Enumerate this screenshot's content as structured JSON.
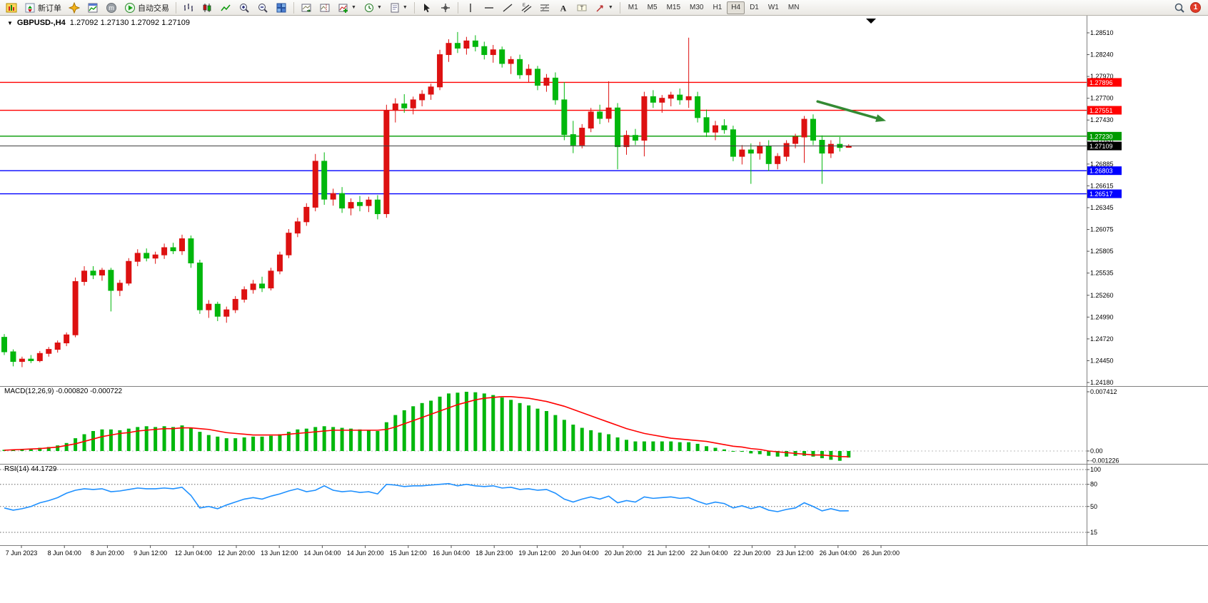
{
  "toolbar": {
    "new_order_label": "新订单",
    "autotrading_label": "自动交易",
    "timeframes": [
      "M1",
      "M5",
      "M15",
      "M30",
      "H1",
      "H4",
      "D1",
      "W1",
      "MN"
    ],
    "active_timeframe": "H4",
    "notification_badge": "1",
    "icon_names": [
      "app-chart",
      "new-order",
      "navigator",
      "data-window",
      "mql-community",
      "autotrading-play",
      "chart-bars",
      "chart-candles",
      "chart-line",
      "zoom-in",
      "zoom-out",
      "tile-windows",
      "auto-scroll",
      "chart-shift",
      "indicators",
      "periods",
      "templates",
      "cursor",
      "crosshair",
      "vertical-line",
      "horizontal-line",
      "trendline",
      "equidistant-channel",
      "fibonacci",
      "text",
      "text-label",
      "arrows",
      "search",
      "notification"
    ]
  },
  "chart": {
    "symbol_title": "GBPUSD-,H4",
    "ohlc_line": "1.27092 1.27130 1.27092 1.27109",
    "macd_label": "MACD(12,26,9) -0.000820 -0.000722",
    "rsi_label": "RSI(14) 44.1729"
  },
  "chart_data": {
    "type": "candlestick",
    "symbol": "GBPUSD-",
    "timeframe": "H4",
    "current_ohlc": {
      "open": 1.27092,
      "high": 1.2713,
      "low": 1.27092,
      "close": 1.27109
    },
    "colors": {
      "bull": "#dd1111",
      "bear": "#00b70c",
      "macd_hist": "#00b70c",
      "macd_signal": "#ff0000",
      "rsi_line": "#1e90ff",
      "panel_border": "#808080",
      "arrow": "#338a33",
      "current_price_line": "#404040"
    },
    "price_axis": {
      "labels": [
        "1.28510",
        "1.28240",
        "1.27970",
        "1.27700",
        "1.27430",
        "1.27160",
        "1.26885",
        "1.26615",
        "1.26345",
        "1.26075",
        "1.25805",
        "1.25535",
        "1.25260",
        "1.24990",
        "1.24720",
        "1.24450",
        "1.24180"
      ],
      "max": 1.2851,
      "min": 1.2418
    },
    "hlines": [
      {
        "price": 1.27896,
        "color": "#ff0000",
        "tag": "1.27896",
        "tag_bg": "#ff0000"
      },
      {
        "price": 1.27551,
        "color": "#ff0000",
        "tag": "1.27551",
        "tag_bg": "#ff0000"
      },
      {
        "price": 1.2723,
        "color": "#009a00",
        "tag": "1.27230",
        "tag_bg": "#009a00"
      },
      {
        "price": 1.26803,
        "color": "#0000ff",
        "tag": "1.26803",
        "tag_bg": "#0000ff"
      },
      {
        "price": 1.26517,
        "color": "#0000ff",
        "tag": "1.26517",
        "tag_bg": "#0000ff"
      }
    ],
    "current_price": {
      "price": 1.27109,
      "tag": "1.27109",
      "tag_bg": "#000000"
    },
    "annotation_arrow": {
      "from_index": 91.5,
      "from_price": 1.2766,
      "to_index": 99.2,
      "to_price": 1.2742
    },
    "candles": [
      [
        1.2474,
        1.2478,
        1.2452,
        1.2456
      ],
      [
        1.2456,
        1.2459,
        1.2438,
        1.2444
      ],
      [
        1.2444,
        1.245,
        1.2437,
        1.2447
      ],
      [
        1.2447,
        1.2452,
        1.2442,
        1.2445
      ],
      [
        1.2445,
        1.2457,
        1.2443,
        1.2454
      ],
      [
        1.2454,
        1.2462,
        1.245,
        1.2459
      ],
      [
        1.2459,
        1.247,
        1.2455,
        1.2467
      ],
      [
        1.2467,
        1.248,
        1.2463,
        1.2477
      ],
      [
        1.2477,
        1.2548,
        1.2474,
        1.2543
      ],
      [
        1.2543,
        1.2562,
        1.2538,
        1.2556
      ],
      [
        1.2556,
        1.2562,
        1.2546,
        1.2551
      ],
      [
        1.2551,
        1.256,
        1.2544,
        1.2557
      ],
      [
        1.2557,
        1.256,
        1.2506,
        1.2532
      ],
      [
        1.2532,
        1.2545,
        1.2525,
        1.2541
      ],
      [
        1.2541,
        1.2572,
        1.2538,
        1.2568
      ],
      [
        1.2568,
        1.2583,
        1.2562,
        1.2578
      ],
      [
        1.2578,
        1.2584,
        1.2568,
        1.2572
      ],
      [
        1.2572,
        1.258,
        1.2565,
        1.2576
      ],
      [
        1.2576,
        1.259,
        1.2571,
        1.2585
      ],
      [
        1.2585,
        1.2591,
        1.2577,
        1.2581
      ],
      [
        1.2581,
        1.2601,
        1.2576,
        1.2596
      ],
      [
        1.2596,
        1.26,
        1.256,
        1.2566
      ],
      [
        1.2566,
        1.257,
        1.2503,
        1.2508
      ],
      [
        1.2508,
        1.252,
        1.2498,
        1.2515
      ],
      [
        1.2515,
        1.2518,
        1.2494,
        1.25
      ],
      [
        1.25,
        1.2512,
        1.2492,
        1.2508
      ],
      [
        1.2508,
        1.2525,
        1.2504,
        1.2521
      ],
      [
        1.2521,
        1.2537,
        1.2517,
        1.2533
      ],
      [
        1.2533,
        1.2545,
        1.2528,
        1.254
      ],
      [
        1.254,
        1.2549,
        1.253,
        1.2535
      ],
      [
        1.2535,
        1.256,
        1.2532,
        1.2556
      ],
      [
        1.2556,
        1.258,
        1.2552,
        1.2576
      ],
      [
        1.2576,
        1.2608,
        1.2572,
        1.2603
      ],
      [
        1.2603,
        1.2622,
        1.2598,
        1.2617
      ],
      [
        1.2617,
        1.264,
        1.2612,
        1.2635
      ],
      [
        1.2635,
        1.2701,
        1.263,
        1.2692
      ],
      [
        1.2692,
        1.2703,
        1.2638,
        1.2645
      ],
      [
        1.2645,
        1.2658,
        1.2637,
        1.2652
      ],
      [
        1.2652,
        1.266,
        1.2628,
        1.2634
      ],
      [
        1.2634,
        1.2646,
        1.2625,
        1.2641
      ],
      [
        1.2641,
        1.2649,
        1.263,
        1.2637
      ],
      [
        1.2637,
        1.2648,
        1.2629,
        1.2644
      ],
      [
        1.2644,
        1.265,
        1.262,
        1.2627
      ],
      [
        1.2627,
        1.2762,
        1.2622,
        1.2755
      ],
      [
        1.2755,
        1.277,
        1.274,
        1.2763
      ],
      [
        1.2763,
        1.2775,
        1.2752,
        1.2758
      ],
      [
        1.2758,
        1.2772,
        1.275,
        1.2768
      ],
      [
        1.2768,
        1.278,
        1.276,
        1.2775
      ],
      [
        1.2775,
        1.2788,
        1.2768,
        1.2784
      ],
      [
        1.2784,
        1.283,
        1.278,
        1.2824
      ],
      [
        1.2824,
        1.2843,
        1.2815,
        1.2838
      ],
      [
        1.2838,
        1.2852,
        1.2826,
        1.2832
      ],
      [
        1.2832,
        1.2846,
        1.2824,
        1.2841
      ],
      [
        1.2841,
        1.2848,
        1.2828,
        1.2834
      ],
      [
        1.2834,
        1.284,
        1.2818,
        1.2824
      ],
      [
        1.2824,
        1.2836,
        1.2814,
        1.283
      ],
      [
        1.283,
        1.2834,
        1.2808,
        1.2813
      ],
      [
        1.2813,
        1.2822,
        1.28,
        1.2818
      ],
      [
        1.2818,
        1.2824,
        1.2794,
        1.2799
      ],
      [
        1.2799,
        1.2812,
        1.279,
        1.2806
      ],
      [
        1.2806,
        1.281,
        1.278,
        1.2786
      ],
      [
        1.2786,
        1.28,
        1.2778,
        1.2795
      ],
      [
        1.2795,
        1.2802,
        1.2762,
        1.2768
      ],
      [
        1.2768,
        1.279,
        1.2718,
        1.2725
      ],
      [
        1.2725,
        1.2742,
        1.2702,
        1.2712
      ],
      [
        1.2712,
        1.2738,
        1.2708,
        1.2733
      ],
      [
        1.2733,
        1.2758,
        1.2728,
        1.2753
      ],
      [
        1.2753,
        1.2762,
        1.2738,
        1.2745
      ],
      [
        1.2745,
        1.2791,
        1.274,
        1.2758
      ],
      [
        1.2758,
        1.2764,
        1.2682,
        1.271
      ],
      [
        1.271,
        1.273,
        1.27,
        1.2724
      ],
      [
        1.2724,
        1.2732,
        1.2712,
        1.2718
      ],
      [
        1.2718,
        1.2778,
        1.2698,
        1.2772
      ],
      [
        1.2772,
        1.278,
        1.2758,
        1.2765
      ],
      [
        1.2765,
        1.2774,
        1.2752,
        1.277
      ],
      [
        1.277,
        1.2778,
        1.276,
        1.2774
      ],
      [
        1.2774,
        1.2782,
        1.2762,
        1.2768
      ],
      [
        1.2768,
        1.2845,
        1.2758,
        1.2772
      ],
      [
        1.2772,
        1.2778,
        1.274,
        1.2746
      ],
      [
        1.2746,
        1.2756,
        1.2722,
        1.2728
      ],
      [
        1.2728,
        1.2742,
        1.2718,
        1.2736
      ],
      [
        1.2736,
        1.2744,
        1.2726,
        1.2731
      ],
      [
        1.2731,
        1.2736,
        1.2692,
        1.2698
      ],
      [
        1.2698,
        1.2712,
        1.2688,
        1.2706
      ],
      [
        1.2706,
        1.2714,
        1.2664,
        1.2702
      ],
      [
        1.2702,
        1.2716,
        1.2694,
        1.2711
      ],
      [
        1.2711,
        1.2718,
        1.268,
        1.2689
      ],
      [
        1.2689,
        1.2702,
        1.2682,
        1.2698
      ],
      [
        1.2698,
        1.2718,
        1.2692,
        1.2714
      ],
      [
        1.2714,
        1.2726,
        1.2708,
        1.2722
      ],
      [
        1.2722,
        1.2748,
        1.269,
        1.2744
      ],
      [
        1.2744,
        1.275,
        1.2712,
        1.2718
      ],
      [
        1.2718,
        1.2724,
        1.2664,
        1.2702
      ],
      [
        1.2702,
        1.2718,
        1.2696,
        1.2713
      ],
      [
        1.2713,
        1.2722,
        1.2704,
        1.2709
      ],
      [
        1.27092,
        1.2713,
        1.27092,
        1.27109
      ]
    ],
    "macd": {
      "params": "12,26,9",
      "main_value": -0.00082,
      "signal_value": -0.000722,
      "scale": {
        "max": 0.007412,
        "min": -0.001226,
        "max_label": "0.007412",
        "zero_label": "0.00",
        "min_label": "-0.001226"
      },
      "main": [
        0.00015,
        0.0002,
        0.00022,
        0.0003,
        0.0004,
        0.0005,
        0.0007,
        0.001,
        0.0016,
        0.0021,
        0.0025,
        0.0027,
        0.0027,
        0.0026,
        0.0028,
        0.003,
        0.0031,
        0.003,
        0.0031,
        0.003,
        0.0032,
        0.0029,
        0.0024,
        0.002,
        0.0018,
        0.0016,
        0.0016,
        0.0017,
        0.0018,
        0.0018,
        0.0019,
        0.0021,
        0.0024,
        0.0027,
        0.0028,
        0.003,
        0.0031,
        0.003,
        0.0029,
        0.0028,
        0.0027,
        0.0026,
        0.0025,
        0.0036,
        0.0045,
        0.0051,
        0.0056,
        0.006,
        0.0063,
        0.0068,
        0.0072,
        0.0073,
        0.007412,
        0.00735,
        0.0072,
        0.007,
        0.0067,
        0.0064,
        0.006,
        0.0057,
        0.0053,
        0.005,
        0.0045,
        0.0039,
        0.0033,
        0.0029,
        0.0026,
        0.0023,
        0.0021,
        0.0017,
        0.0014,
        0.0012,
        0.0012,
        0.0012,
        0.0012,
        0.0012,
        0.0011,
        0.0011,
        0.0009,
        0.0006,
        0.0004,
        0.0002,
        0.0,
        -0.0001,
        -0.0003,
        -0.0004,
        -0.0006,
        -0.0007,
        -0.0007,
        -0.0006,
        -0.0006,
        -0.0007,
        -0.0009,
        -0.0011,
        -0.001226,
        -0.00082
      ],
      "signal": [
        0.0001,
        0.00015,
        0.0002,
        0.00025,
        0.0003,
        0.0004,
        0.0005,
        0.0007,
        0.0009,
        0.0012,
        0.0015,
        0.0018,
        0.002,
        0.0022,
        0.0023,
        0.0025,
        0.0026,
        0.0027,
        0.0028,
        0.0028,
        0.0029,
        0.0029,
        0.0028,
        0.0027,
        0.0025,
        0.0023,
        0.0022,
        0.0021,
        0.002,
        0.002,
        0.002,
        0.002,
        0.0021,
        0.0022,
        0.0023,
        0.0024,
        0.0025,
        0.0026,
        0.0026,
        0.0026,
        0.0026,
        0.0026,
        0.0026,
        0.0027,
        0.003,
        0.0034,
        0.0038,
        0.0042,
        0.0046,
        0.005,
        0.0054,
        0.0058,
        0.0061,
        0.0064,
        0.0066,
        0.0067,
        0.0068,
        0.0068,
        0.0067,
        0.0066,
        0.0064,
        0.0062,
        0.0059,
        0.0056,
        0.0052,
        0.0048,
        0.0044,
        0.004,
        0.0036,
        0.0032,
        0.0028,
        0.0025,
        0.0022,
        0.002,
        0.0018,
        0.0016,
        0.0015,
        0.0014,
        0.0013,
        0.0012,
        0.001,
        0.0008,
        0.0006,
        0.0005,
        0.0003,
        0.0002,
        0.0,
        -0.0001,
        -0.0002,
        -0.0003,
        -0.0004,
        -0.0005,
        -0.0005,
        -0.0006,
        -0.0007,
        -0.000722
      ]
    },
    "rsi": {
      "period": 14,
      "value": 44.1729,
      "levels": [
        {
          "value": 100,
          "label": "100"
        },
        {
          "value": 80,
          "label": "80"
        },
        {
          "value": 50,
          "label": "50"
        },
        {
          "value": 15,
          "label": "15"
        }
      ],
      "values": [
        48,
        45,
        47,
        50,
        55,
        58,
        62,
        68,
        72,
        74,
        73,
        74,
        70,
        71,
        73,
        75,
        74,
        74,
        75,
        74,
        76,
        65,
        48,
        50,
        47,
        52,
        56,
        60,
        62,
        60,
        64,
        67,
        71,
        74,
        70,
        72,
        78,
        72,
        70,
        71,
        69,
        70,
        67,
        80,
        79,
        77,
        78,
        78,
        79,
        80,
        81,
        78,
        80,
        78,
        77,
        78,
        75,
        76,
        73,
        74,
        72,
        73,
        68,
        60,
        56,
        60,
        63,
        60,
        64,
        55,
        58,
        56,
        63,
        61,
        62,
        63,
        61,
        62,
        57,
        53,
        56,
        54,
        48,
        51,
        47,
        50,
        45,
        43,
        46,
        48,
        55,
        50,
        44,
        47,
        44,
        44.17
      ]
    },
    "time_axis": {
      "labels": [
        "7 Jun 2023",
        "8 Jun 04:00",
        "8 Jun 20:00",
        "9 Jun 12:00",
        "12 Jun 04:00",
        "12 Jun 20:00",
        "13 Jun 12:00",
        "14 Jun 04:00",
        "14 Jun 20:00",
        "15 Jun 12:00",
        "16 Jun 04:00",
        "18 Jun 23:00",
        "19 Jun 12:00",
        "20 Jun 04:00",
        "20 Jun 20:00",
        "21 Jun 12:00",
        "22 Jun 04:00",
        "22 Jun 20:00",
        "23 Jun 12:00",
        "26 Jun 04:00",
        "26 Jun 20:00"
      ]
    }
  }
}
